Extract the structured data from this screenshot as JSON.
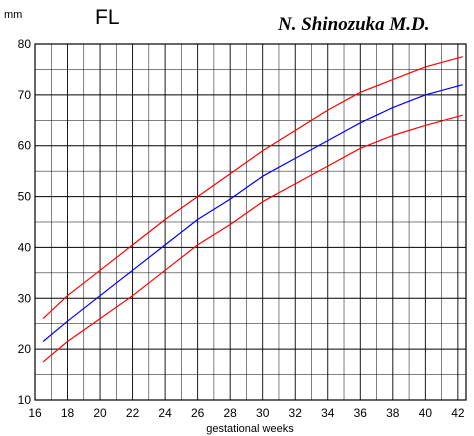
{
  "chart_data": {
    "type": "line",
    "title": "FL",
    "author": "N. Shinozuka M.D.",
    "xlabel": "gestational weeks",
    "ylabel": "mm",
    "xlim": [
      16,
      42.5
    ],
    "ylim": [
      10,
      80
    ],
    "x_ticks": [
      "16",
      "18",
      "20",
      "22",
      "24",
      "26",
      "28",
      "30",
      "32",
      "34",
      "36",
      "38",
      "40",
      "42"
    ],
    "y_ticks": [
      "10",
      "20",
      "30",
      "40",
      "50",
      "60",
      "70",
      "80"
    ],
    "grid": true,
    "series": [
      {
        "color": "#ff0000",
        "x": [
          16.5,
          18,
          20,
          22,
          24,
          26,
          28,
          30,
          32,
          34,
          36,
          38,
          40,
          42.3
        ],
        "values": [
          26,
          30.5,
          35.5,
          40.5,
          45.5,
          50,
          54.5,
          59,
          63,
          67,
          70.5,
          73,
          75.5,
          77.5
        ]
      },
      {
        "color": "#0000ff",
        "x": [
          16.5,
          18,
          20,
          22,
          24,
          26,
          28,
          30,
          32,
          34,
          36,
          38,
          40,
          42.3
        ],
        "values": [
          21.5,
          25.5,
          30.5,
          35.5,
          40.5,
          45.5,
          49.5,
          54,
          57.5,
          61,
          64.5,
          67.5,
          70,
          72
        ]
      },
      {
        "color": "#ff0000",
        "x": [
          16.5,
          18,
          20,
          22,
          24,
          26,
          28,
          30,
          32,
          34,
          36,
          38,
          40,
          42.3
        ],
        "values": [
          17.5,
          21.5,
          26,
          30.5,
          35.5,
          40.5,
          44.5,
          49,
          52.5,
          56,
          59.5,
          62,
          64,
          66
        ]
      }
    ]
  }
}
